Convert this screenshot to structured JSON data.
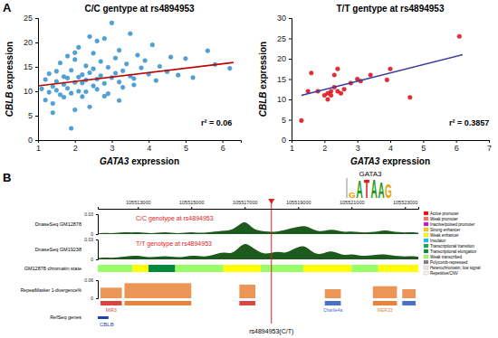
{
  "panel_labels": [
    "A",
    "B"
  ],
  "chart_data": [
    {
      "type": "scatter",
      "title": "C/C gentype at rs4894953",
      "x_label": "GATA3 expression",
      "y_label": "CBLB expression",
      "xlim": [
        1,
        6.5
      ],
      "ylim": [
        0,
        25
      ],
      "xticks": [
        1,
        2,
        3,
        4,
        5,
        6
      ],
      "yticks": [
        0,
        5,
        10,
        15,
        20,
        25
      ],
      "annotations": [
        "r² = 0.06"
      ],
      "series": [
        {
          "type": "scatter",
          "marker": "circle",
          "color": "#3a9ad9",
          "x": [
            1.1,
            1.2,
            1.2,
            1.3,
            1.3,
            1.4,
            1.4,
            1.5,
            1.5,
            1.5,
            1.6,
            1.6,
            1.7,
            1.7,
            1.7,
            1.8,
            1.8,
            1.8,
            1.9,
            1.9,
            2.0,
            2.0,
            2.0,
            2.1,
            2.1,
            2.1,
            2.2,
            2.2,
            2.2,
            2.3,
            2.3,
            2.3,
            2.4,
            2.4,
            2.5,
            2.5,
            2.5,
            2.6,
            2.6,
            2.7,
            2.7,
            2.8,
            2.8,
            2.9,
            2.9,
            3.0,
            3.0,
            3.1,
            3.1,
            3.2,
            3.2,
            3.3,
            3.3,
            3.4,
            3.5,
            3.5,
            3.6,
            3.7,
            3.8,
            3.9,
            4.0,
            4.1,
            4.2,
            4.3,
            4.5,
            4.6,
            4.8,
            5.0,
            5.2,
            5.6,
            5.8,
            6.2,
            1.9,
            2.4,
            2.8,
            3.2,
            3.6,
            1.4,
            2.0,
            2.6
          ],
          "values": [
            10.5,
            8.2,
            12.4,
            9.8,
            13.6,
            11.0,
            7.5,
            10.2,
            14.1,
            12.0,
            9.3,
            15.8,
            11.4,
            8.8,
            13.0,
            10.6,
            17.2,
            12.7,
            9.6,
            14.3,
            11.8,
            6.2,
            16.5,
            12.9,
            10.0,
            19.0,
            13.4,
            8.9,
            11.7,
            15.2,
            12.3,
            9.9,
            13.8,
            21.2,
            11.1,
            14.6,
            17.8,
            12.5,
            10.4,
            16.1,
            13.2,
            11.6,
            20.8,
            14.9,
            9.5,
            12.8,
            24.0,
            13.7,
            16.8,
            11.9,
            18.4,
            14.2,
            10.8,
            15.6,
            13.1,
            21.8,
            12.6,
            17.4,
            14.8,
            16.3,
            13.5,
            19.5,
            12.2,
            15.1,
            14.0,
            17.0,
            13.3,
            16.7,
            12.8,
            18.3,
            15.5,
            14.7,
            2.4,
            6.8,
            9.0,
            8.1,
            11.3,
            5.6,
            17.9,
            20.3
          ]
        },
        {
          "type": "line",
          "line_style": "solid",
          "color": "#c00000",
          "x": [
            1.0,
            6.3
          ],
          "values": [
            11.1,
            15.9
          ]
        }
      ]
    },
    {
      "type": "scatter",
      "title": "T/T gentype at rs4894953",
      "x_label": "GATA3 expression",
      "y_label": "CBLB expression",
      "xlim": [
        1,
        7
      ],
      "ylim": [
        0,
        30
      ],
      "xticks": [
        1,
        2,
        3,
        4,
        5,
        6,
        7
      ],
      "yticks": [
        0,
        5,
        10,
        15,
        20,
        25,
        30
      ],
      "annotations": [
        "r² = 0.3857"
      ],
      "series": [
        {
          "type": "scatter",
          "marker": "circle",
          "color": "#e8141e",
          "x": [
            1.3,
            1.5,
            1.6,
            1.8,
            2.0,
            2.1,
            2.1,
            2.2,
            2.2,
            2.3,
            2.3,
            2.4,
            2.4,
            2.5,
            2.6,
            2.8,
            3.0,
            3.1,
            3.4,
            3.9,
            4.0,
            4.6,
            6.1
          ],
          "values": [
            4.8,
            12.0,
            16.5,
            12.0,
            11.0,
            10.0,
            11.5,
            12.0,
            11.0,
            13.0,
            16.0,
            17.5,
            12.0,
            11.5,
            12.5,
            14.0,
            15.0,
            14.5,
            16.0,
            14.8,
            17.5,
            10.5,
            25.5
          ]
        },
        {
          "type": "line",
          "line_style": "solid",
          "color": "#3b3b9e",
          "x": [
            1.3,
            6.2
          ],
          "values": [
            11.0,
            21.0
          ]
        }
      ]
    }
  ],
  "browser": {
    "xlim": [
      105511500,
      105523500
    ],
    "xticks": [
      105513000,
      105515000,
      105517000,
      105519000,
      105521000,
      105523000
    ],
    "motif": {
      "title": "GATA3",
      "letters": [
        "G",
        "A",
        "T",
        "A",
        "A",
        "G"
      ],
      "heights": [
        0.6,
        1.8,
        1.9,
        1.9,
        1.6,
        1.4
      ],
      "colors": [
        "#f0a000",
        "#1a9a1a",
        "#d42020",
        "#1a9a1a",
        "#1a9a1a",
        "#f0a000"
      ],
      "ylim": [
        0,
        2
      ],
      "tick_labels": false
    },
    "positions": [
      105511500,
      105511750,
      105512000,
      105512250,
      105512500,
      105512750,
      105513000,
      105513250,
      105513500,
      105513750,
      105514000,
      105514250,
      105514500,
      105514750,
      105515000,
      105515250,
      105515500,
      105515750,
      105516000,
      105516250,
      105516500,
      105516750,
      105517000,
      105517250,
      105517500,
      105517750,
      105518000,
      105518250,
      105518500,
      105518750,
      105519000,
      105519250,
      105519500,
      105519750,
      105520000,
      105520250,
      105520500,
      105520750,
      105521000,
      105521250,
      105521500,
      105521750,
      105522000,
      105522250,
      105522500,
      105522750,
      105523000,
      105523250,
      105523500
    ],
    "tracks": [
      {
        "label": "DnaseSeq GM12878",
        "note": {
          "text": "C/C genotype at rs4894953",
          "color": "#e02020"
        },
        "color": "#1d5a1d",
        "ylim": [
          0,
          0.03
        ],
        "yticks": [
          0,
          0.03
        ],
        "values": [
          0.001,
          0.002,
          0.001,
          0.002,
          0.003,
          0.002,
          0.003,
          0.002,
          0.001,
          0.002,
          0.003,
          0.002,
          0.001,
          0.002,
          0.003,
          0.002,
          0.002,
          0.003,
          0.004,
          0.005,
          0.006,
          0.012,
          0.021,
          0.01,
          0.005,
          0.004,
          0.003,
          0.004,
          0.006,
          0.009,
          0.011,
          0.013,
          0.008,
          0.004,
          0.005,
          0.007,
          0.005,
          0.003,
          0.004,
          0.003,
          0.002,
          0.003,
          0.004,
          0.006,
          0.004,
          0.003,
          0.002,
          0.003,
          0.002
        ]
      },
      {
        "label": "DnaseSeq GM19238",
        "note": {
          "text": "T/T genotype at rs4894953",
          "color": "#e02020"
        },
        "color": "#1d5a1d",
        "ylim": [
          0,
          0.03
        ],
        "yticks": [
          0,
          0.03
        ],
        "values": [
          0.002,
          0.003,
          0.002,
          0.003,
          0.004,
          0.005,
          0.006,
          0.004,
          0.003,
          0.004,
          0.005,
          0.004,
          0.003,
          0.004,
          0.006,
          0.005,
          0.004,
          0.006,
          0.009,
          0.011,
          0.008,
          0.016,
          0.026,
          0.019,
          0.012,
          0.008,
          0.01,
          0.012,
          0.009,
          0.014,
          0.019,
          0.021,
          0.012,
          0.007,
          0.01,
          0.013,
          0.009,
          0.006,
          0.008,
          0.006,
          0.005,
          0.006,
          0.007,
          0.008,
          0.006,
          0.005,
          0.004,
          0.005,
          0.004
        ]
      }
    ],
    "chromatin": {
      "label": "GM12878 chromatin state",
      "segments": [
        {
          "start": 105511500,
          "end": 105512800,
          "state": "Weak transcribed"
        },
        {
          "start": 105512800,
          "end": 105513400,
          "state": "Weak enhancer"
        },
        {
          "start": 105513400,
          "end": 105514400,
          "state": "Transcriptional elongation"
        },
        {
          "start": 105514400,
          "end": 105516200,
          "state": "Weak transcribed"
        },
        {
          "start": 105516200,
          "end": 105517600,
          "state": "Weak enhancer"
        },
        {
          "start": 105517600,
          "end": 105519200,
          "state": "Weak transcribed"
        },
        {
          "start": 105519200,
          "end": 105521000,
          "state": "Weak enhancer"
        },
        {
          "start": 105521000,
          "end": 105522000,
          "state": "Weak transcribed"
        },
        {
          "start": 105522000,
          "end": 105523500,
          "state": "Weak enhancer"
        }
      ],
      "legend": [
        {
          "name": "Active promoter",
          "color": "#ff0000"
        },
        {
          "name": "Weak promoter",
          "color": "#ff6969"
        },
        {
          "name": "Inactive/poised promoter",
          "color": "#cf0bc6"
        },
        {
          "name": "Strong enhancer",
          "color": "#faca00"
        },
        {
          "name": "Weak enhancer",
          "color": "#ffff00"
        },
        {
          "name": "Insulator",
          "color": "#0abefe"
        },
        {
          "name": "Transcriptional transition",
          "color": "#00b050"
        },
        {
          "name": "Transcriptional elongation",
          "color": "#008a3c"
        },
        {
          "name": "Weak transcribed",
          "color": "#99ff66"
        },
        {
          "name": "Polycomb-repressed",
          "color": "#7f7f7f"
        },
        {
          "name": "Heterochromatin; low signal",
          "color": "#e8e8e8"
        },
        {
          "name": "Repetitive/CNV",
          "color": "#f5f5f5"
        }
      ]
    },
    "repeats": {
      "label": "RepeatMasker 1-divergence%",
      "ylim": [
        0,
        0.06
      ],
      "yticks": [
        0,
        0.06
      ],
      "elements": [
        {
          "name": "MIR3",
          "start": 105511600,
          "end": 105512400,
          "value": 0.035,
          "color": "#d9473f"
        },
        {
          "name": null,
          "start": 105512500,
          "end": 105515000,
          "value": 0.05,
          "color": "#e8833a"
        },
        {
          "name": null,
          "start": 105516800,
          "end": 105517400,
          "value": 0.045,
          "color": "#d9473f"
        },
        {
          "name": "Charlie4a",
          "start": 105520000,
          "end": 105520600,
          "value": 0.03,
          "color": "#4a72c4"
        },
        {
          "name": "MER33",
          "start": 105521800,
          "end": 105522700,
          "value": 0.04,
          "color": "#e8833a"
        },
        {
          "name": null,
          "start": 105522900,
          "end": 105523400,
          "value": 0.03,
          "color": "#4a72c4"
        }
      ]
    },
    "genes": {
      "label": "RefSeq genes",
      "elements": [
        {
          "name": "CBLB",
          "start": 105511500,
          "end": 105511900,
          "color": "#1f3fbf"
        }
      ]
    },
    "snp": {
      "label": "rs4894953(C/T)",
      "position": 105518000,
      "color": "#e02020"
    }
  }
}
